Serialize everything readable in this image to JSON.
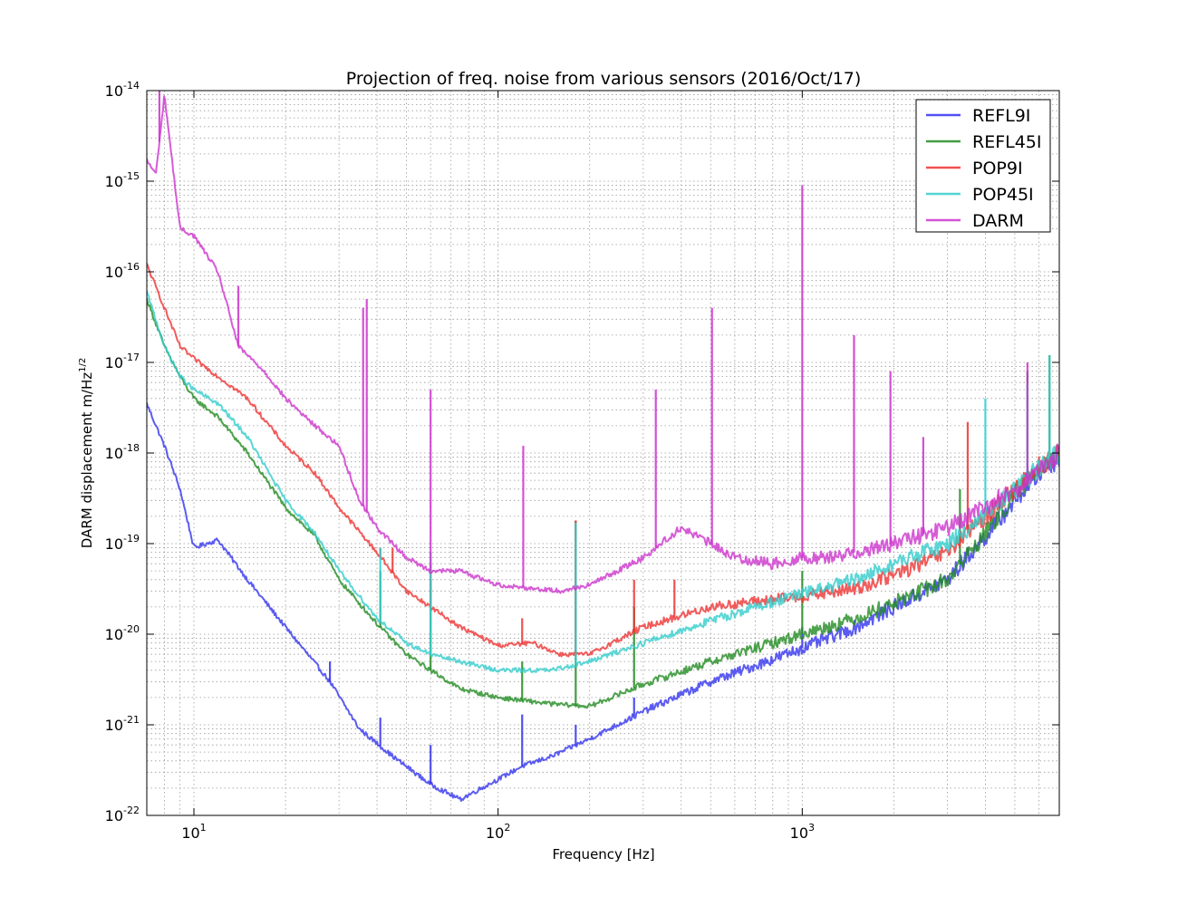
{
  "chart_data": {
    "type": "line",
    "title": "Projection of freq. noise from various sensors (2016/Oct/17)",
    "xlabel": "Frequency [Hz]",
    "ylabel": "DARM displacement m/Hz",
    "ylabel_exp": "1/2",
    "xscale": "log",
    "yscale": "log",
    "xlim": [
      7,
      7000
    ],
    "ylim": [
      1e-22,
      1e-14
    ],
    "grid": true,
    "legend_position": "top-right",
    "x_ticks": [
      {
        "base": "10",
        "exp": "1",
        "value": 10
      },
      {
        "base": "10",
        "exp": "2",
        "value": 100
      },
      {
        "base": "10",
        "exp": "3",
        "value": 1000
      }
    ],
    "y_ticks": [
      {
        "base": "10",
        "exp": "-22",
        "value": 1e-22
      },
      {
        "base": "10",
        "exp": "-21",
        "value": 1e-21
      },
      {
        "base": "10",
        "exp": "-20",
        "value": 1e-20
      },
      {
        "base": "10",
        "exp": "-19",
        "value": 1e-19
      },
      {
        "base": "10",
        "exp": "-18",
        "value": 1e-18
      },
      {
        "base": "10",
        "exp": "-17",
        "value": 1e-17
      },
      {
        "base": "10",
        "exp": "-16",
        "value": 1e-16
      },
      {
        "base": "10",
        "exp": "-15",
        "value": 1e-15
      },
      {
        "base": "10",
        "exp": "-14",
        "value": 1e-14
      }
    ],
    "series": [
      {
        "name": "REFL9I",
        "color": "#3333ee",
        "x": [
          7,
          8,
          9,
          10,
          12,
          15,
          20,
          28,
          35,
          45,
          60,
          75,
          100,
          120,
          150,
          200,
          300,
          500,
          700,
          1000,
          1500,
          2000,
          3000,
          4000,
          5000,
          6000,
          7000
        ],
        "y": [
          3.5e-18,
          1.2e-18,
          4e-19,
          9e-20,
          1.1e-19,
          4e-20,
          1.2e-20,
          3e-21,
          9e-22,
          4.5e-22,
          2.2e-22,
          1.5e-22,
          2.5e-22,
          3.5e-22,
          4.5e-22,
          7e-22,
          1.4e-21,
          3e-21,
          4.5e-21,
          7e-21,
          1.2e-20,
          2e-20,
          4e-20,
          1.2e-19,
          3e-19,
          6e-19,
          9e-19
        ],
        "peaks": [
          {
            "x": 28,
            "y": 5e-21
          },
          {
            "x": 41,
            "y": 1.2e-21
          },
          {
            "x": 60,
            "y": 6e-22
          },
          {
            "x": 120,
            "y": 1.3e-21
          },
          {
            "x": 180,
            "y": 1e-21
          },
          {
            "x": 280,
            "y": 2e-21
          },
          {
            "x": 1000,
            "y": 1.2e-20
          }
        ]
      },
      {
        "name": "REFL45I",
        "color": "#228b22",
        "x": [
          7,
          8,
          9,
          10,
          12,
          15,
          20,
          25,
          30,
          40,
          50,
          60,
          75,
          100,
          150,
          200,
          300,
          500,
          700,
          1000,
          1500,
          2000,
          3000,
          4000,
          5000,
          6000,
          7000
        ],
        "y": [
          5e-17,
          1.5e-17,
          7e-18,
          4e-18,
          2.5e-18,
          1e-18,
          2.5e-19,
          1.2e-19,
          4e-20,
          1.3e-20,
          6e-21,
          4e-21,
          2.5e-21,
          2e-21,
          1.7e-21,
          1.6e-21,
          2.8e-21,
          5e-21,
          7e-21,
          1e-20,
          1.5e-20,
          2.2e-20,
          4e-20,
          1.3e-19,
          3.5e-19,
          7e-19,
          1e-18
        ],
        "peaks": [
          {
            "x": 41,
            "y": 5e-20
          },
          {
            "x": 60,
            "y": 4e-20
          },
          {
            "x": 120,
            "y": 5e-21
          },
          {
            "x": 180,
            "y": 1.8e-19
          },
          {
            "x": 280,
            "y": 2e-20
          },
          {
            "x": 1000,
            "y": 5e-20
          },
          {
            "x": 3300,
            "y": 4e-19
          },
          {
            "x": 5500,
            "y": 8e-18
          },
          {
            "x": 6500,
            "y": 1.2e-17
          }
        ]
      },
      {
        "name": "POP9I",
        "color": "#ee3333",
        "x": [
          7,
          8,
          9,
          10,
          12,
          15,
          20,
          25,
          30,
          40,
          50,
          60,
          75,
          100,
          130,
          160,
          200,
          300,
          500,
          700,
          1000,
          1500,
          2000,
          3000,
          4000,
          5000,
          6000,
          7000
        ],
        "y": [
          1.2e-16,
          4e-17,
          1.5e-17,
          1.1e-17,
          7e-18,
          4e-18,
          1.2e-18,
          6e-19,
          2.5e-19,
          8e-20,
          3e-20,
          2e-20,
          1.2e-20,
          7.5e-21,
          8e-21,
          6e-21,
          6e-21,
          1.2e-20,
          2e-20,
          2.3e-20,
          2.6e-20,
          3.2e-20,
          4.5e-20,
          8e-20,
          2e-19,
          4e-19,
          7e-19,
          1e-18
        ],
        "peaks": [
          {
            "x": 41,
            "y": 9e-20
          },
          {
            "x": 45,
            "y": 9e-20
          },
          {
            "x": 60,
            "y": 6e-20
          },
          {
            "x": 120,
            "y": 1.5e-20
          },
          {
            "x": 180,
            "y": 1.8e-19
          },
          {
            "x": 280,
            "y": 4e-20
          },
          {
            "x": 380,
            "y": 4e-20
          },
          {
            "x": 3500,
            "y": 2.2e-18
          }
        ]
      },
      {
        "name": "POP45I",
        "color": "#33cccc",
        "x": [
          7,
          8,
          9,
          10,
          12,
          15,
          20,
          25,
          30,
          40,
          50,
          60,
          75,
          100,
          150,
          200,
          300,
          500,
          700,
          1000,
          1500,
          2000,
          3000,
          4000,
          5000,
          6000,
          7000
        ],
        "y": [
          6e-17,
          1.5e-17,
          7e-18,
          5e-18,
          3.5e-18,
          1.5e-18,
          3e-19,
          1.3e-19,
          5e-20,
          1.5e-20,
          8e-21,
          6e-21,
          5e-21,
          4e-21,
          4e-21,
          5e-21,
          8e-21,
          1.4e-20,
          2e-20,
          2.8e-20,
          4e-20,
          6e-20,
          1e-19,
          2e-19,
          4e-19,
          7e-19,
          1e-18
        ],
        "peaks": [
          {
            "x": 41,
            "y": 9e-20
          },
          {
            "x": 60,
            "y": 8e-20
          },
          {
            "x": 180,
            "y": 1.7e-19
          },
          {
            "x": 4000,
            "y": 4e-18
          },
          {
            "x": 5500,
            "y": 6e-18
          },
          {
            "x": 6500,
            "y": 1.2e-17
          }
        ]
      },
      {
        "name": "DARM",
        "color": "#cc33cc",
        "x": [
          7,
          7.5,
          8,
          9,
          10,
          12,
          14,
          17,
          20,
          25,
          30,
          35,
          40,
          50,
          60,
          75,
          100,
          130,
          160,
          200,
          300,
          400,
          500,
          600,
          800,
          1000,
          1200,
          1500,
          2000,
          3000,
          4000,
          5000,
          6000,
          7000
        ],
        "y": [
          1.7e-15,
          1.2e-15,
          9e-15,
          3e-16,
          2.5e-16,
          1e-16,
          1.5e-17,
          8e-18,
          4e-18,
          2e-18,
          1.2e-18,
          3e-19,
          1.5e-19,
          7e-20,
          5e-20,
          5e-20,
          3.5e-20,
          3.2e-20,
          3e-20,
          3.5e-20,
          7e-20,
          1.5e-19,
          1e-19,
          7e-20,
          6e-20,
          7e-20,
          7e-20,
          8e-20,
          1e-19,
          1.5e-19,
          2.5e-19,
          4e-19,
          6e-19,
          1e-18
        ],
        "peaks": [
          {
            "x": 7.7,
            "y": 1e-14
          },
          {
            "x": 14,
            "y": 7e-17
          },
          {
            "x": 36,
            "y": 4e-17
          },
          {
            "x": 37,
            "y": 5e-17
          },
          {
            "x": 60,
            "y": 5e-18
          },
          {
            "x": 121,
            "y": 1.2e-18
          },
          {
            "x": 330,
            "y": 5e-18
          },
          {
            "x": 505,
            "y": 4e-17
          },
          {
            "x": 1000,
            "y": 9e-16
          },
          {
            "x": 1480,
            "y": 2e-17
          },
          {
            "x": 1950,
            "y": 8e-18
          },
          {
            "x": 2500,
            "y": 1.5e-18
          },
          {
            "x": 5500,
            "y": 1e-17
          }
        ]
      }
    ]
  }
}
